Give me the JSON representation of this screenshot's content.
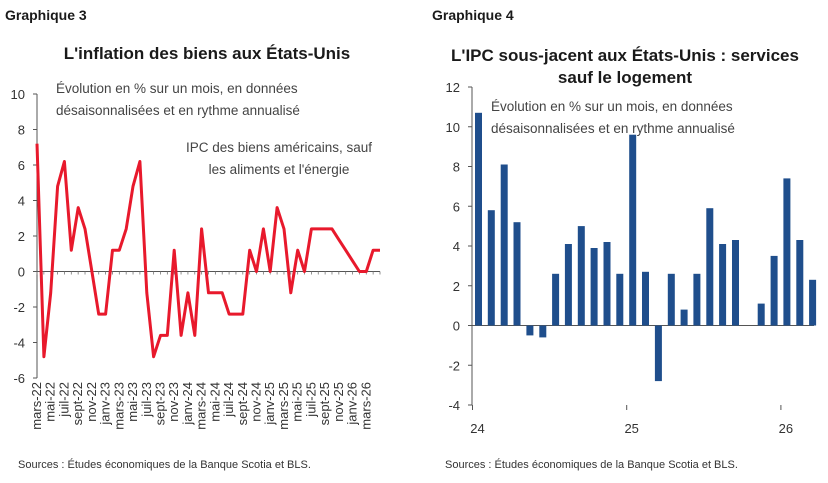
{
  "left": {
    "graph_label": "Graphique 3",
    "source": "Sources : Études économiques de la Banque Scotia et BLS.",
    "chart_data": {
      "type": "line",
      "title": "L'inflation des biens aux États-Unis",
      "subtitle_lines": [
        "Évolution en % sur un mois, en données",
        "désaisonnalisées et en rythme annualisé"
      ],
      "series": [
        {
          "name": "IPC des biens américains, sauf les aliments et l'énergie",
          "name_lines": [
            "IPC des biens américains, sauf",
            "les aliments et l'énergie"
          ],
          "color": "#e8192c",
          "values": [
            7.2,
            -4.8,
            -1.2,
            4.8,
            6.2,
            1.2,
            3.6,
            2.4,
            0,
            -2.4,
            -2.4,
            1.2,
            1.2,
            2.4,
            4.8,
            6.2,
            -1.2,
            -4.8,
            -3.6,
            -3.6,
            1.2,
            -3.6,
            -1.2,
            -3.6,
            2.4,
            -1.2,
            -1.2,
            -1.2,
            -2.4,
            -2.4,
            -2.4,
            1.2,
            0,
            2.4,
            0,
            3.6,
            2.4,
            -1.2,
            1.2,
            0,
            2.4,
            2.4,
            2.4,
            2.4,
            1.8,
            1.2,
            0.6,
            0,
            0,
            1.2,
            1.2
          ]
        }
      ],
      "x_tick_labels": [
        "mars-22",
        "mai-22",
        "juil-22",
        "sept-22",
        "nov-22",
        "janv-23",
        "mars-23",
        "mai-23",
        "juil-23",
        "sept-23",
        "nov-23",
        "janv-24",
        "mars-24",
        "mai-24",
        "juil-24",
        "sept-24",
        "nov-24",
        "janv-25",
        "mars-25",
        "mai-25",
        "juil-25",
        "sept-25",
        "nov-25",
        "janv-26",
        "mars-26"
      ],
      "y_ticks": [
        10,
        8,
        6,
        4,
        2,
        0,
        -2,
        -4,
        -6
      ],
      "ylim": [
        -6,
        10
      ]
    }
  },
  "right": {
    "graph_label": "Graphique 4",
    "source": "Sources : Études économiques de la Banque Scotia et BLS.",
    "chart_data": {
      "type": "bar",
      "title": "L'IPC sous-jacent aux États-Unis : services sauf le logement",
      "title_lines": [
        "L'IPC sous-jacent aux États-Unis : services",
        "sauf le logement"
      ],
      "subtitle_lines": [
        "Évolution en % sur un mois, en données",
        "désaisonnalisées et en rythme annualisé"
      ],
      "color": "#1f4e8c",
      "values": [
        10.7,
        5.8,
        8.1,
        5.2,
        -0.5,
        -0.6,
        2.6,
        4.1,
        5.0,
        3.9,
        4.2,
        2.6,
        9.6,
        2.7,
        -2.8,
        2.6,
        0.8,
        2.6,
        5.9,
        4.1,
        4.3,
        null,
        1.1,
        3.5,
        7.4,
        4.3,
        2.3
      ],
      "x_tick_labels": [
        "24",
        "25",
        "26"
      ],
      "y_ticks": [
        12,
        10,
        8,
        6,
        4,
        2,
        0,
        -2,
        -4
      ],
      "ylim": [
        -4,
        12
      ]
    }
  }
}
